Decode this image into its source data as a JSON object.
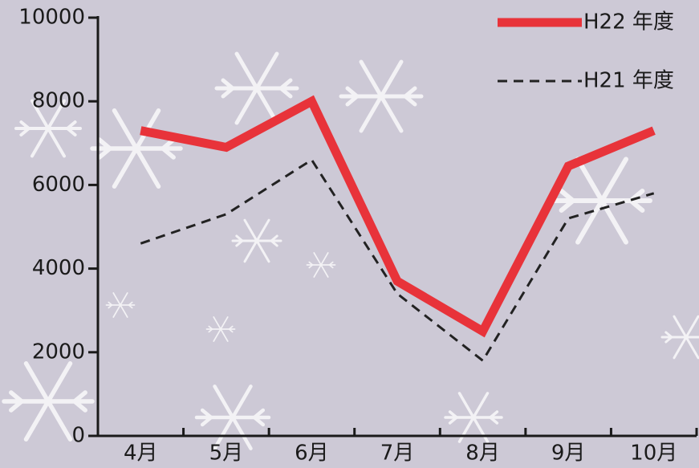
{
  "chart_data": {
    "type": "line",
    "categories": [
      "4月",
      "5月",
      "6月",
      "7月",
      "8月",
      "9月",
      "10月"
    ],
    "series": [
      {
        "name": "H22 年度",
        "color": "#e8333a",
        "style": "solid",
        "values": [
          7300,
          6900,
          8000,
          3700,
          2500,
          6450,
          7300
        ]
      },
      {
        "name": "H21 年度",
        "color": "#222222",
        "style": "dashed",
        "values": [
          4600,
          5300,
          6600,
          3400,
          1800,
          5200,
          5800
        ]
      }
    ],
    "ylim": [
      0,
      10000
    ],
    "yticks": [
      0,
      2000,
      4000,
      6000,
      8000,
      10000
    ],
    "legend": "top-right"
  }
}
